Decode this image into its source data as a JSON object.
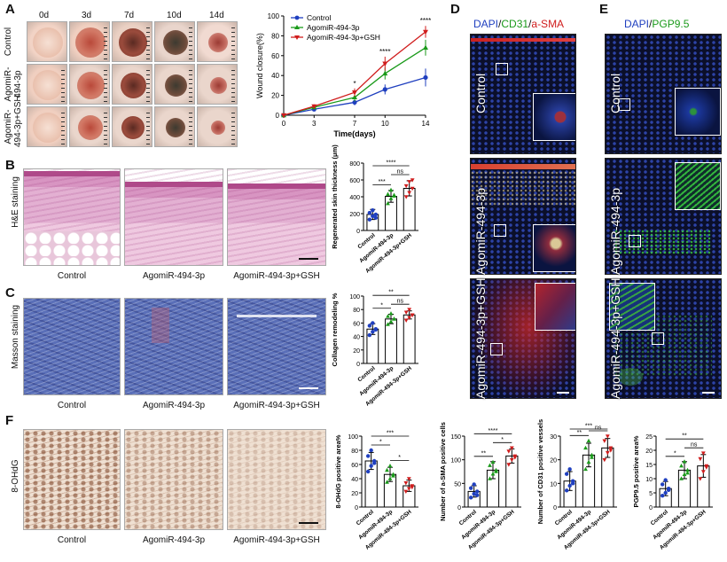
{
  "panel_labels": {
    "A": "A",
    "B": "B",
    "C": "C",
    "D": "D",
    "E": "E",
    "F": "F"
  },
  "panelA": {
    "days": [
      "0d",
      "3d",
      "7d",
      "10d",
      "14d"
    ],
    "rows": [
      "Control",
      "AgomiR-494-3p",
      "AgomiR-494-3p+GSH"
    ],
    "row_labels": [
      [
        "Control"
      ],
      [
        "AgomiR-",
        "494-3p"
      ],
      [
        "AgomiR-",
        "494-3p+GSH"
      ]
    ]
  },
  "groups": [
    "Control",
    "AgomiR-494-3p",
    "AgomiR-494-3p+GSH"
  ],
  "panelB": {
    "side_label": "H&E staining"
  },
  "panelC": {
    "side_label": "Masson staining"
  },
  "panelF": {
    "side_label": "8-OHdG"
  },
  "panelD": {
    "title_parts": [
      {
        "t": "DAPI",
        "c": "#1f3fbf"
      },
      {
        "t": "/",
        "c": "#111"
      },
      {
        "t": "CD31",
        "c": "#1a9a1a"
      },
      {
        "t": "/",
        "c": "#111"
      },
      {
        "t": "a-SMA",
        "c": "#d01c1c"
      }
    ]
  },
  "panelE": {
    "title_parts": [
      {
        "t": "DAPI",
        "c": "#1f3fbf"
      },
      {
        "t": "/",
        "c": "#111"
      },
      {
        "t": "PGP9.5",
        "c": "#1a9a1a"
      }
    ]
  },
  "colors": {
    "control": "#1f3fbf",
    "agomir": "#1a9a1a",
    "gsh": "#d01c1c"
  },
  "chart_data": [
    {
      "id": "wound",
      "type": "line",
      "xlabel": "Time(days)",
      "ylabel": "Wound closure(%)",
      "x": [
        0,
        3,
        7,
        10,
        14
      ],
      "xticks": [
        0,
        3,
        7,
        10,
        14
      ],
      "ylim": [
        0,
        100
      ],
      "yticks": [
        0,
        20,
        40,
        60,
        80,
        100
      ],
      "legend_position": "top-left",
      "series": [
        {
          "name": "Control",
          "color": "#1f3fbf",
          "marker": "circle",
          "values": [
            0,
            6,
            13,
            26,
            38
          ],
          "err": [
            0,
            2,
            3,
            5,
            9
          ]
        },
        {
          "name": "AgomiR-494-3p",
          "color": "#1a9a1a",
          "marker": "triangle-up",
          "values": [
            0,
            8,
            18,
            42,
            68
          ],
          "err": [
            0,
            2,
            4,
            6,
            8
          ]
        },
        {
          "name": "AgomiR-494-3p+GSH",
          "color": "#d01c1c",
          "marker": "triangle-down",
          "values": [
            0,
            9,
            23,
            52,
            84
          ],
          "err": [
            0,
            2,
            4,
            7,
            6
          ]
        }
      ],
      "annotations": [
        {
          "x": 7,
          "text": "*"
        },
        {
          "x": 10,
          "text": "****"
        },
        {
          "x": 14,
          "text": "****"
        }
      ]
    },
    {
      "id": "skin",
      "type": "bar",
      "ylabel": "Regenerated skin thickness (μm)",
      "ylim": [
        0,
        800
      ],
      "yticks": [
        0,
        200,
        400,
        600,
        800
      ],
      "categories": [
        "Control",
        "AgomiR-494-3p",
        "AgomiR-494-3p+GSH"
      ],
      "values": [
        190,
        405,
        500
      ],
      "err": [
        60,
        70,
        90
      ],
      "points": [
        [
          130,
          170,
          190,
          210,
          240,
          150
        ],
        [
          320,
          380,
          410,
          430,
          480,
          420
        ],
        [
          400,
          450,
          500,
          530,
          580,
          600
        ]
      ],
      "sig": [
        {
          "a": 0,
          "b": 1,
          "t": "***"
        },
        {
          "a": 1,
          "b": 2,
          "t": "ns"
        },
        {
          "a": 0,
          "b": 2,
          "t": "****"
        }
      ]
    },
    {
      "id": "collagen",
      "type": "bar",
      "ylabel": "Collagen remodeling %",
      "ylim": [
        0,
        100
      ],
      "yticks": [
        0,
        20,
        40,
        60,
        80,
        100
      ],
      "categories": [
        "Control",
        "AgomiR-494-3p",
        "AgomiR-494-3p+GSH"
      ],
      "values": [
        51,
        66,
        72
      ],
      "err": [
        8,
        7,
        6
      ],
      "points": [
        [
          42,
          47,
          51,
          56,
          60,
          50
        ],
        [
          58,
          62,
          66,
          70,
          74,
          66
        ],
        [
          64,
          68,
          72,
          76,
          80,
          72
        ]
      ],
      "sig": [
        {
          "a": 0,
          "b": 1,
          "t": "*"
        },
        {
          "a": 1,
          "b": 2,
          "t": "ns"
        },
        {
          "a": 0,
          "b": 2,
          "t": "**"
        }
      ]
    },
    {
      "id": "ohdg",
      "type": "bar",
      "ylabel": "8-OHdG positive area%",
      "ylim": [
        0,
        100
      ],
      "yticks": [
        0,
        20,
        40,
        60,
        80,
        100
      ],
      "categories": [
        "Control",
        "AgomiR-494-3p",
        "AgomiR-494-3p+GSH"
      ],
      "values": [
        65,
        46,
        30
      ],
      "err": [
        12,
        10,
        8
      ],
      "points": [
        [
          50,
          58,
          65,
          72,
          80,
          62
        ],
        [
          35,
          40,
          46,
          52,
          58,
          44
        ],
        [
          22,
          26,
          30,
          34,
          40,
          28
        ]
      ],
      "sig": [
        {
          "a": 0,
          "b": 1,
          "t": "*"
        },
        {
          "a": 1,
          "b": 2,
          "t": "*"
        },
        {
          "a": 0,
          "b": 2,
          "t": "***"
        }
      ]
    },
    {
      "id": "asma",
      "type": "bar",
      "ylabel": "Number of a-SMA positive cells",
      "ylim": [
        0,
        150
      ],
      "yticks": [
        0,
        50,
        100,
        150
      ],
      "categories": [
        "Control",
        "AgomiR-494-3p",
        "AgomiR-494-3p+GSH"
      ],
      "values": [
        33,
        78,
        108
      ],
      "err": [
        12,
        18,
        15
      ],
      "points": [
        [
          20,
          28,
          33,
          40,
          48,
          25
        ],
        [
          60,
          70,
          78,
          88,
          95,
          75
        ],
        [
          90,
          100,
          108,
          118,
          125,
          105
        ]
      ],
      "sig": [
        {
          "a": 0,
          "b": 1,
          "t": "**"
        },
        {
          "a": 1,
          "b": 2,
          "t": "*"
        },
        {
          "a": 0,
          "b": 2,
          "t": "****"
        }
      ]
    },
    {
      "id": "cd31",
      "type": "bar",
      "ylabel": "Number of CD31 positive vessels",
      "ylim": [
        0,
        30
      ],
      "yticks": [
        0,
        10,
        20,
        30
      ],
      "categories": [
        "Control",
        "AgomiR-494-3p",
        "AgomiR-494-3p+GSH"
      ],
      "values": [
        11,
        22,
        25
      ],
      "err": [
        4,
        5,
        4
      ],
      "points": [
        [
          7,
          9,
          11,
          14,
          16,
          10
        ],
        [
          16,
          19,
          22,
          25,
          28,
          21
        ],
        [
          20,
          23,
          25,
          28,
          30,
          24
        ]
      ],
      "sig": [
        {
          "a": 0,
          "b": 1,
          "t": "**"
        },
        {
          "a": 1,
          "b": 2,
          "t": "ns"
        },
        {
          "a": 0,
          "b": 2,
          "t": "***"
        }
      ]
    },
    {
      "id": "pgp",
      "type": "bar",
      "ylabel": "PGP9.5 positive area%",
      "ylim": [
        0,
        25
      ],
      "yticks": [
        0,
        5,
        10,
        15,
        20,
        25
      ],
      "categories": [
        "Control",
        "AgomiR-494-3p",
        "AgomiR-494-3p+GSH"
      ],
      "values": [
        6.5,
        13,
        14.5
      ],
      "err": [
        2.5,
        3,
        4
      ],
      "points": [
        [
          4,
          5,
          6.5,
          8,
          9.5,
          6
        ],
        [
          10,
          11.5,
          13,
          14.5,
          16,
          12
        ],
        [
          10,
          12.5,
          14.5,
          17,
          19,
          14
        ]
      ],
      "sig": [
        {
          "a": 0,
          "b": 1,
          "t": "*"
        },
        {
          "a": 1,
          "b": 2,
          "t": "ns"
        },
        {
          "a": 0,
          "b": 2,
          "t": "**"
        }
      ]
    }
  ]
}
